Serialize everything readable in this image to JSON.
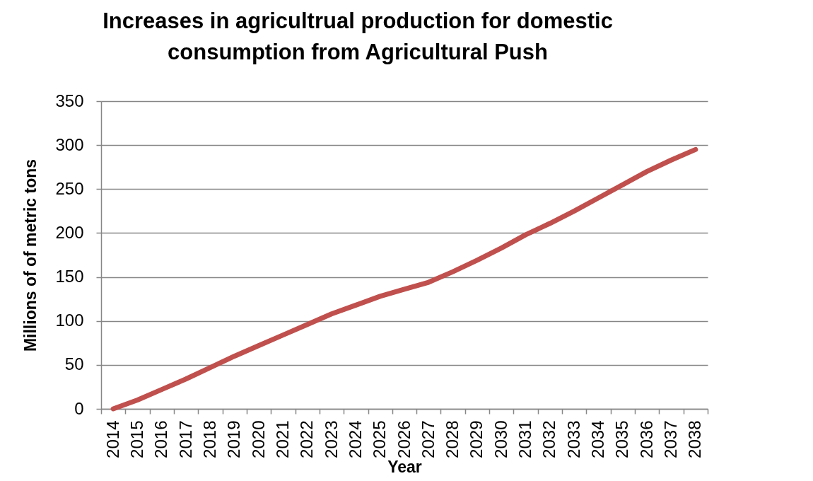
{
  "chart_data": {
    "type": "line",
    "title": "Increases in agricultrual production for domestic consumption from Agricultural Push",
    "xlabel": "Year",
    "ylabel": "Millions of of metric tons",
    "categories": [
      "2014",
      "2015",
      "2016",
      "2017",
      "2018",
      "2019",
      "2020",
      "2021",
      "2022",
      "2023",
      "2024",
      "2025",
      "2026",
      "2027",
      "2028",
      "2029",
      "2030",
      "2031",
      "2032",
      "2033",
      "2034",
      "2035",
      "2036",
      "2037",
      "2038"
    ],
    "series": [
      {
        "color": "#c0504d",
        "values": [
          0,
          10,
          22,
          34,
          47,
          60,
          72,
          84,
          96,
          108,
          118,
          128,
          136,
          144,
          156,
          169,
          183,
          198,
          211,
          225,
          240,
          255,
          270,
          283,
          295
        ]
      }
    ],
    "ylim": [
      0,
      350
    ],
    "yticks": [
      0,
      50,
      100,
      150,
      200,
      250,
      300,
      350
    ],
    "grid": "y",
    "legend": false,
    "marker": "none",
    "line_style": "solid"
  }
}
